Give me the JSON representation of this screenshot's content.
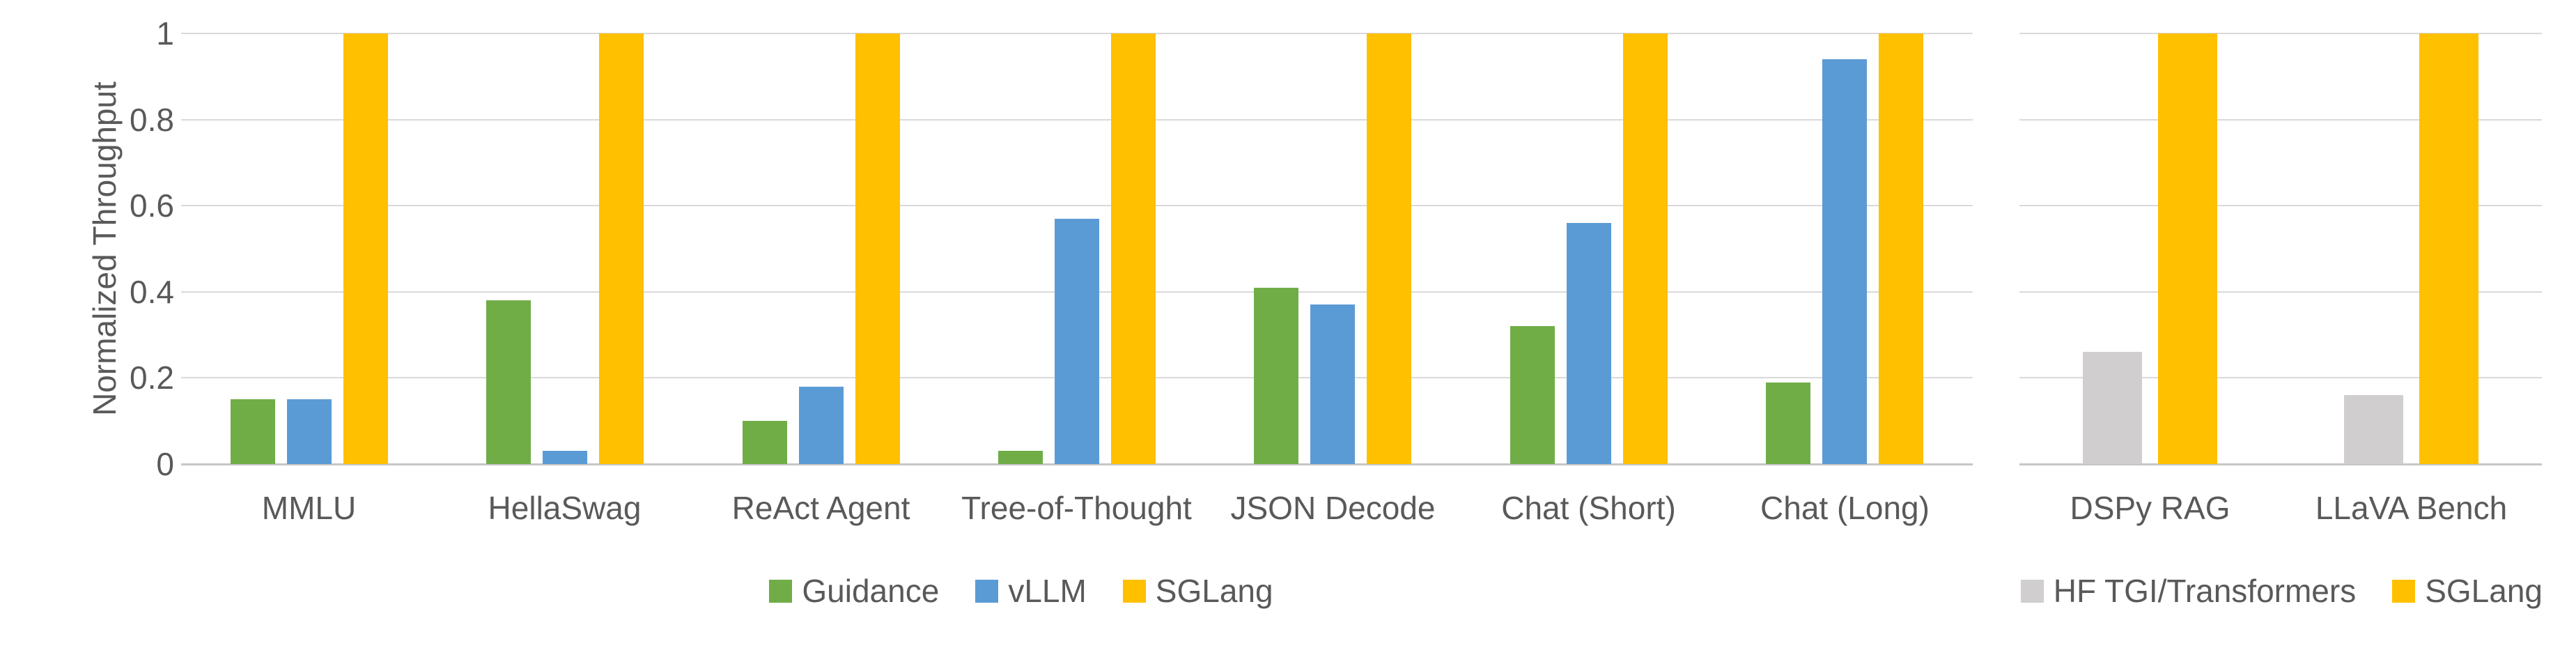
{
  "figure": {
    "background": "#ffffff",
    "text_color": "#595959",
    "gridline_color": "#d9d9d9",
    "axisline_color": "#c6c6c6",
    "y_axis_title": "Normalized Throughput"
  },
  "chart_data": [
    {
      "type": "bar",
      "title": "",
      "xlabel": "",
      "ylabel": "Normalized Throughput",
      "ylim": [
        0,
        1
      ],
      "yticks": [
        0,
        0.2,
        0.4,
        0.6,
        0.8,
        1
      ],
      "ytick_labels": [
        "0",
        "0.2",
        "0.4",
        "0.6",
        "0.8",
        "1"
      ],
      "grid": true,
      "legend_position": "bottom",
      "categories": [
        "MMLU",
        "HellaSwag",
        "ReAct Agent",
        "Tree-of-Thought",
        "JSON Decode",
        "Chat (Short)",
        "Chat (Long)"
      ],
      "series": [
        {
          "name": "Guidance",
          "color": "#70ad47",
          "values": [
            0.15,
            0.38,
            0.1,
            0.03,
            0.41,
            0.32,
            0.19
          ]
        },
        {
          "name": "vLLM",
          "color": "#5b9bd5",
          "values": [
            0.15,
            0.03,
            0.18,
            0.57,
            0.37,
            0.56,
            0.94
          ]
        },
        {
          "name": "SGLang",
          "color": "#ffc000",
          "values": [
            1,
            1,
            1,
            1,
            1,
            1,
            1
          ]
        }
      ]
    },
    {
      "type": "bar",
      "title": "",
      "xlabel": "",
      "ylabel": "",
      "ylim": [
        0,
        1
      ],
      "yticks": [
        0,
        0.2,
        0.4,
        0.6,
        0.8,
        1
      ],
      "ytick_labels": [],
      "grid": true,
      "legend_position": "bottom",
      "categories": [
        "DSPy RAG",
        "LLaVA Bench"
      ],
      "series": [
        {
          "name": "HF TGI/Transformers",
          "color": "#d0cece",
          "values": [
            0.26,
            0.16
          ]
        },
        {
          "name": "SGLang",
          "color": "#ffc000",
          "values": [
            1,
            1
          ]
        }
      ]
    }
  ]
}
